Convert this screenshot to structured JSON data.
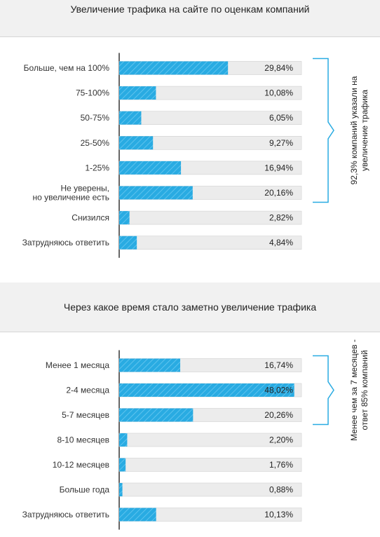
{
  "colors": {
    "bar": "#29abe2",
    "track": "#ececec",
    "track_border": "#d0d0d0",
    "bracket": "#29abe2",
    "axis": "#333333"
  },
  "chart_data": [
    {
      "type": "bar",
      "orientation": "horizontal",
      "title": "Увеличение трафика на сайте по оценкам компаний",
      "categories": [
        "Больше, чем на 100%",
        "75-100%",
        "50-75%",
        "25-50%",
        "1-25%",
        "Не уверены,\nно увеличение есть",
        "Снизился",
        "Затрудняюсь ответить"
      ],
      "values": [
        29.84,
        10.08,
        6.05,
        9.27,
        16.94,
        20.16,
        2.82,
        4.84
      ],
      "value_labels": [
        "29,84%",
        "10,08%",
        "6,05%",
        "9,27%",
        "16,94%",
        "20,16%",
        "2,82%",
        "4,84%"
      ],
      "xlim": [
        0,
        50
      ],
      "xlabel": "",
      "ylabel": "",
      "annotation": {
        "text": "92,3% компаний указали на увеличение трафика",
        "from": 0,
        "to": 5
      }
    },
    {
      "type": "bar",
      "orientation": "horizontal",
      "title": "Через какое время стало заметно увеличение трафика",
      "categories": [
        "Менее 1 месяца",
        "2-4 месяца",
        "5-7 месяцев",
        "8-10 месяцев",
        "10-12 месяцев",
        "Больше года",
        "Затрудняюсь ответить"
      ],
      "values": [
        16.74,
        48.02,
        20.26,
        2.2,
        1.76,
        0.88,
        10.13
      ],
      "value_labels": [
        "16,74%",
        "48,02%",
        "20,26%",
        "2,20%",
        "1,76%",
        "0,88%",
        "10,13%"
      ],
      "xlim": [
        0,
        50
      ],
      "xlabel": "",
      "ylabel": "",
      "annotation": {
        "text": "Менее чем за 7 месяцев - ответ 85% компаний",
        "from": 0,
        "to": 2
      }
    }
  ]
}
